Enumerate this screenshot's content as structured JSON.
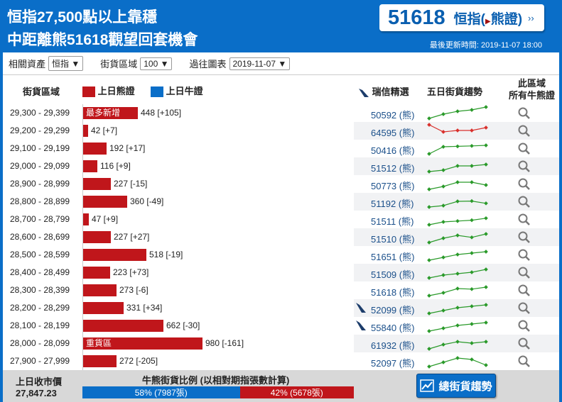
{
  "header": {
    "title_line1": "恒指27,500點以上靠穩",
    "title_line2": "中距離熊51618觀望回套機會",
    "code": "51618",
    "code_name_a": "恒指(",
    "code_name_b": "熊證)",
    "arrow": "››",
    "updated": "最後更新時間: 2019-11-07 18:00"
  },
  "filters": {
    "asset_label": "相關資產",
    "asset_value": "恒指 ▼",
    "zone_label": "街貨區域",
    "zone_value": "100 ▼",
    "past_label": "過往圖表",
    "past_value": "2019-11-07 ▼"
  },
  "columns": {
    "zone": "街貨區域",
    "bear": "上日熊證",
    "bull": "上日牛證",
    "ubs": "瑞信精選",
    "trend": "五日街貨趨勢",
    "all_line1": "此區域",
    "all_line2": "所有牛熊證"
  },
  "colors": {
    "bear": "#c0161b",
    "bull": "#0a6ec8",
    "up": "#2a9a2a",
    "down": "#d9302c"
  },
  "rows": [
    {
      "range": "29,300 - 29,399",
      "count": 448,
      "value": "448 [+105]",
      "tag": "最多新增",
      "code": "50592 (熊)",
      "logo": false,
      "spark": [
        0,
        3,
        5,
        6,
        8
      ],
      "color": "up"
    },
    {
      "range": "29,200 - 29,299",
      "count": 42,
      "value": "42 [+7]",
      "code": "64595 (熊)",
      "logo": false,
      "spark": [
        8,
        3,
        4,
        4,
        6
      ],
      "color": "down"
    },
    {
      "range": "29,100 - 29,199",
      "count": 192,
      "value": "192 [+17]",
      "code": "50416 (熊)",
      "logo": false,
      "spark": [
        0,
        5,
        5.3,
        5.6,
        6
      ],
      "color": "up"
    },
    {
      "range": "29,000 - 29,099",
      "count": 116,
      "value": "116 [+9]",
      "code": "51512 (熊)",
      "logo": false,
      "spark": [
        0,
        1,
        4,
        4,
        5
      ],
      "color": "up"
    },
    {
      "range": "28,900 - 28,999",
      "count": 227,
      "value": "227 [-15]",
      "code": "50773 (熊)",
      "logo": false,
      "spark": [
        0,
        2,
        5,
        5,
        3
      ],
      "color": "up"
    },
    {
      "range": "28,800 - 28,899",
      "count": 360,
      "value": "360 [-49]",
      "code": "51192 (熊)",
      "logo": false,
      "spark": [
        0,
        1,
        4,
        4.2,
        2.6
      ],
      "color": "up"
    },
    {
      "range": "28,700 - 28,799",
      "count": 47,
      "value": "47 [+9]",
      "code": "51511 (熊)",
      "logo": false,
      "spark": [
        0,
        2,
        2.6,
        3.2,
        4.6
      ],
      "color": "up"
    },
    {
      "range": "28,600 - 28,699",
      "count": 227,
      "value": "227 [+27]",
      "code": "51510 (熊)",
      "logo": false,
      "spark": [
        0,
        3,
        5,
        3.6,
        6
      ],
      "color": "up"
    },
    {
      "range": "28,500 - 28,599",
      "count": 518,
      "value": "518 [-19]",
      "code": "51651 (熊)",
      "logo": false,
      "spark": [
        0,
        2,
        4,
        5,
        6
      ],
      "color": "up"
    },
    {
      "range": "28,400 - 28,499",
      "count": 223,
      "value": "223 [+73]",
      "code": "51509 (熊)",
      "logo": false,
      "spark": [
        0,
        2,
        3,
        4,
        6
      ],
      "color": "up"
    },
    {
      "range": "28,300 - 28,399",
      "count": 273,
      "value": "273 [-6]",
      "code": "51618 (熊)",
      "logo": false,
      "spark": [
        0,
        2,
        5,
        4.6,
        6
      ],
      "color": "up"
    },
    {
      "range": "28,200 - 28,299",
      "count": 331,
      "value": "331 [+34]",
      "code": "52099 (熊)",
      "logo": true,
      "spark": [
        0,
        2,
        4,
        5,
        6
      ],
      "color": "up"
    },
    {
      "range": "28,100 - 28,199",
      "count": 662,
      "value": "662 [-30]",
      "code": "55840 (熊)",
      "logo": true,
      "spark": [
        0,
        2,
        4,
        5,
        6
      ],
      "color": "up"
    },
    {
      "range": "28,000 - 28,099",
      "count": 980,
      "value": "980 [-161]",
      "tag": "重貨區",
      "code": "61932 (熊)",
      "logo": false,
      "spark": [
        0,
        3,
        5,
        4,
        5
      ],
      "color": "up"
    },
    {
      "range": "27,900 - 27,999",
      "count": 272,
      "value": "272 [-205]",
      "code": "52097 (熊)",
      "logo": false,
      "spark": [
        0,
        3,
        6,
        5,
        1
      ],
      "color": "up"
    }
  ],
  "footer": {
    "prev_close_label": "上日收市價",
    "prev_close": "27,847.23",
    "ratio_title": "牛熊街貨比例 (以相對期指張數計算)",
    "bull_pct": 58,
    "bull_text": "58% (7987張)",
    "bear_pct": 42,
    "bear_text": "42% (5678張)",
    "trend_button": "總街貨趨勢"
  }
}
